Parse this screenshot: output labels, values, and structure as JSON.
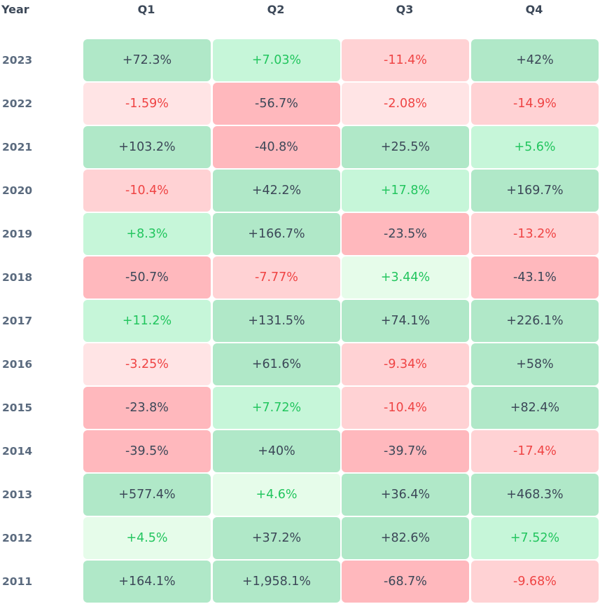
{
  "chart_data": {
    "type": "heatmap",
    "title": "",
    "row_header": "Year",
    "columns": [
      "Q1",
      "Q2",
      "Q3",
      "Q4"
    ],
    "rows": [
      {
        "year": "2023",
        "values": [
          "+72.3%",
          "+7.03%",
          "-11.4%",
          "+42%"
        ],
        "numeric": [
          72.3,
          7.03,
          -11.4,
          42
        ]
      },
      {
        "year": "2022",
        "values": [
          "-1.59%",
          "-56.7%",
          "-2.08%",
          "-14.9%"
        ],
        "numeric": [
          -1.59,
          -56.7,
          -2.08,
          -14.9
        ]
      },
      {
        "year": "2021",
        "values": [
          "+103.2%",
          "-40.8%",
          "+25.5%",
          "+5.6%"
        ],
        "numeric": [
          103.2,
          -40.8,
          25.5,
          5.6
        ]
      },
      {
        "year": "2020",
        "values": [
          "-10.4%",
          "+42.2%",
          "+17.8%",
          "+169.7%"
        ],
        "numeric": [
          -10.4,
          42.2,
          17.8,
          169.7
        ]
      },
      {
        "year": "2019",
        "values": [
          "+8.3%",
          "+166.7%",
          "-23.5%",
          "-13.2%"
        ],
        "numeric": [
          8.3,
          166.7,
          -23.5,
          -13.2
        ]
      },
      {
        "year": "2018",
        "values": [
          "-50.7%",
          "-7.77%",
          "+3.44%",
          "-43.1%"
        ],
        "numeric": [
          -50.7,
          -7.77,
          3.44,
          -43.1
        ]
      },
      {
        "year": "2017",
        "values": [
          "+11.2%",
          "+131.5%",
          "+74.1%",
          "+226.1%"
        ],
        "numeric": [
          11.2,
          131.5,
          74.1,
          226.1
        ]
      },
      {
        "year": "2016",
        "values": [
          "-3.25%",
          "+61.6%",
          "-9.34%",
          "+58%"
        ],
        "numeric": [
          -3.25,
          61.6,
          -9.34,
          58
        ]
      },
      {
        "year": "2015",
        "values": [
          "-23.8%",
          "+7.72%",
          "-10.4%",
          "+82.4%"
        ],
        "numeric": [
          -23.8,
          7.72,
          -10.4,
          82.4
        ]
      },
      {
        "year": "2014",
        "values": [
          "-39.5%",
          "+40%",
          "-39.7%",
          "-17.4%"
        ],
        "numeric": [
          -39.5,
          40,
          -39.7,
          -17.4
        ]
      },
      {
        "year": "2013",
        "values": [
          "+577.4%",
          "+4.6%",
          "+36.4%",
          "+468.3%"
        ],
        "numeric": [
          577.4,
          4.6,
          36.4,
          468.3
        ]
      },
      {
        "year": "2012",
        "values": [
          "+4.5%",
          "+37.2%",
          "+82.6%",
          "+7.52%"
        ],
        "numeric": [
          4.5,
          37.2,
          82.6,
          7.52
        ]
      },
      {
        "year": "2011",
        "values": [
          "+164.1%",
          "+1,958.1%",
          "-68.7%",
          "-9.68%"
        ],
        "numeric": [
          164.1,
          1958.1,
          -68.7,
          -9.68
        ]
      }
    ],
    "colors": {
      "pos_strong": "#b0e8c8",
      "pos_medium": "#c6f6d9",
      "pos_light": "#e6fcea",
      "neg_strong": "#ffb8bd",
      "neg_medium": "#ffd2d4",
      "neg_light": "#ffe4e5",
      "text_dark": "#3c4858",
      "text_pos": "#22c55e",
      "text_neg": "#ef4444"
    }
  }
}
